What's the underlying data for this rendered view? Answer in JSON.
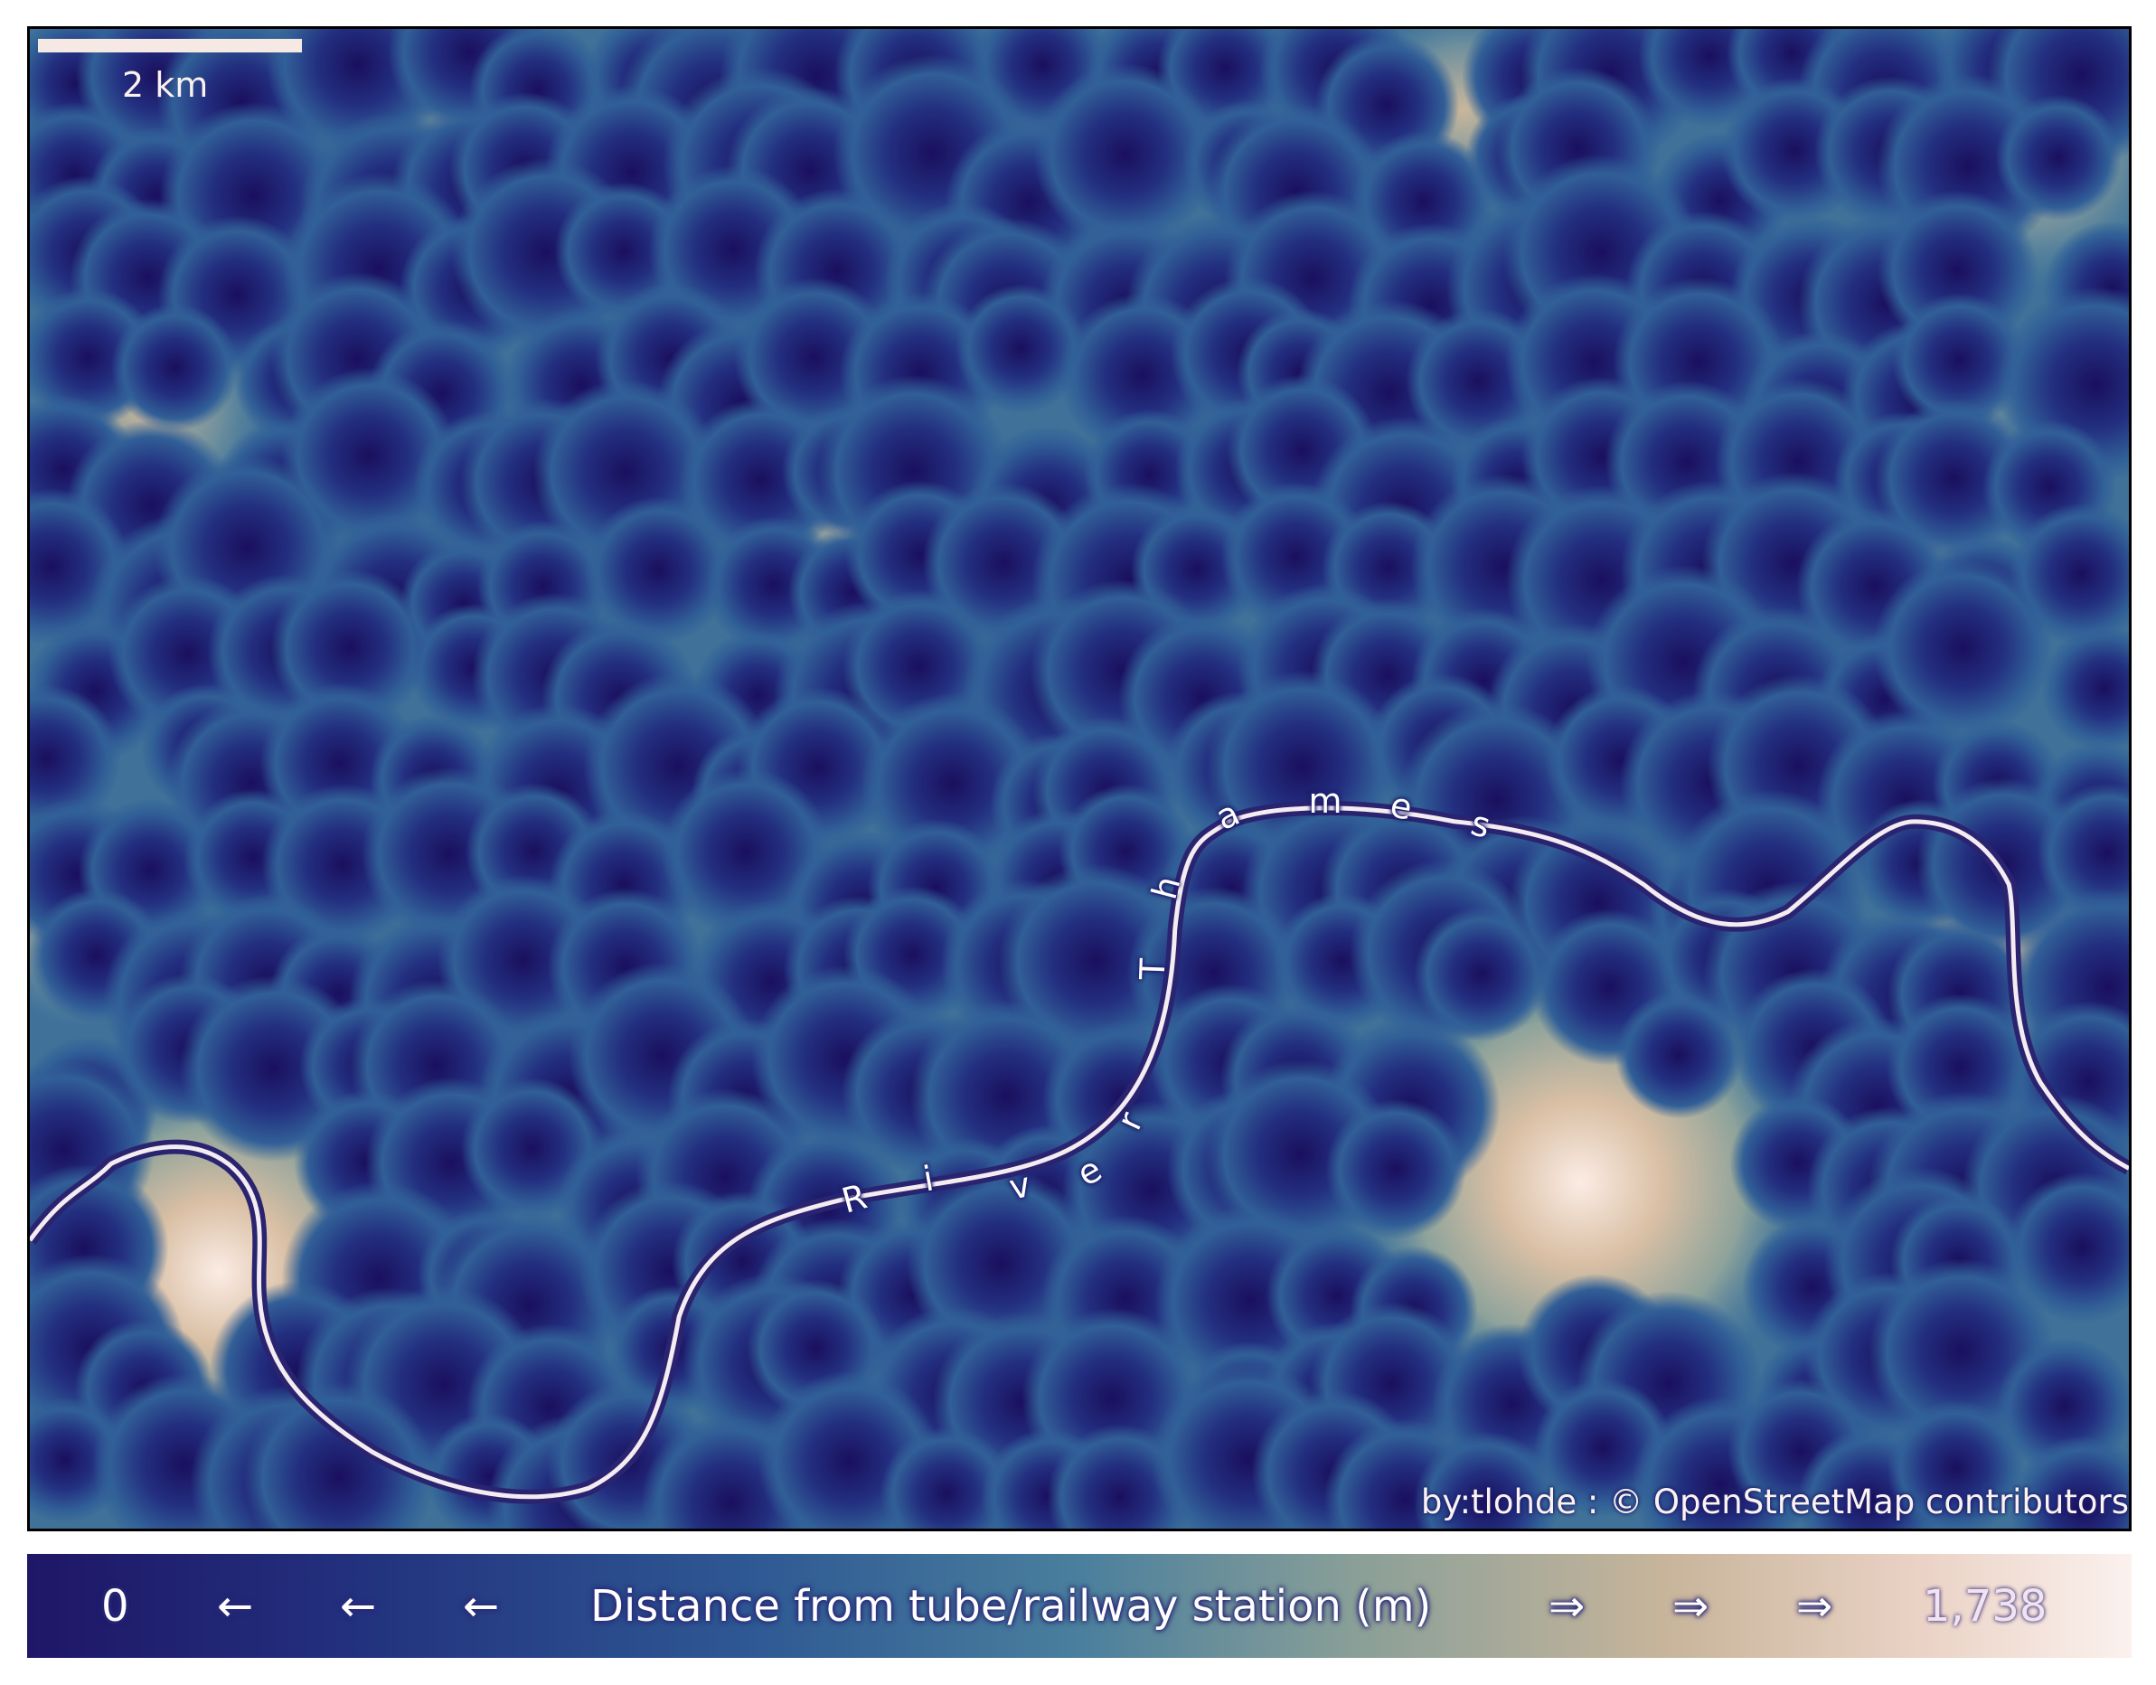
{
  "scale_bar": {
    "label": "2 km"
  },
  "river": {
    "label": "River Thames",
    "letters": [
      "R",
      "i",
      "v",
      "e",
      "r",
      "T",
      "h",
      "a",
      "m",
      "e",
      "s"
    ]
  },
  "attribution": "by:tlohde : © OpenStreetMap contributors",
  "colorbar": {
    "min_label": "0",
    "max_label": "1,738",
    "title": "Distance from tube/railway station (m)",
    "left_arrow": "←",
    "right_arrow": "⇒",
    "colors": [
      "#1f1667",
      "#2f5a94",
      "#4a7f9d",
      "#899f98",
      "#c8b59b",
      "#fbf1ee"
    ]
  }
}
